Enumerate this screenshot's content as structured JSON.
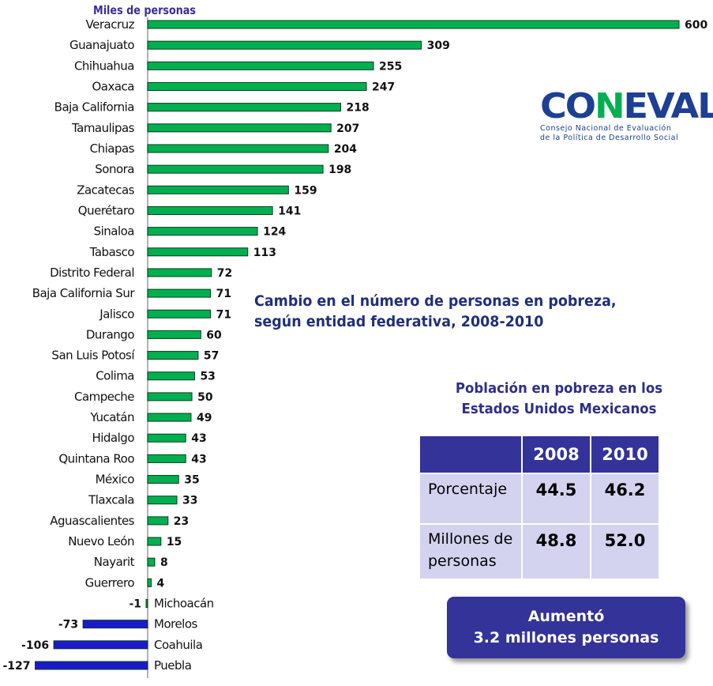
{
  "chart_data": {
    "type": "bar",
    "orientation": "horizontal",
    "unit_label": "Miles de personas",
    "title": "Cambio en el número de personas en pobreza, según entidad federativa, 2008-2010",
    "categories": [
      "Veracruz",
      "Guanajuato",
      "Chihuahua",
      "Oaxaca",
      "Baja California",
      "Tamaulipas",
      "Chiapas",
      "Sonora",
      "Zacatecas",
      "Querétaro",
      "Sinaloa",
      "Tabasco",
      "Distrito Federal",
      "Baja California Sur",
      "Jalisco",
      "Durango",
      "San Luis Potosí",
      "Colima",
      "Campeche",
      "Yucatán",
      "Hidalgo",
      "Quintana Roo",
      "México",
      "Tlaxcala",
      "Aguascalientes",
      "Nuevo León",
      "Nayarit",
      "Guerrero",
      "Michoacán",
      "Morelos",
      "Coahuila",
      "Puebla"
    ],
    "values": [
      600,
      309,
      255,
      247,
      218,
      207,
      204,
      198,
      159,
      141,
      124,
      113,
      72,
      71,
      71,
      60,
      57,
      53,
      50,
      49,
      43,
      43,
      35,
      33,
      23,
      15,
      8,
      4,
      -1,
      -73,
      -106,
      -127
    ],
    "colors": {
      "positive": "#00b050",
      "negative": "#1a1acc"
    },
    "grid": false,
    "data_labels": true
  },
  "summary": {
    "title_line1": "Cambio en el número de personas en pobreza,",
    "title_line2": "según entidad federativa, 2008-2010",
    "table_title_line1": "Población en pobreza en los",
    "table_title_line2": "Estados Unidos Mexicanos",
    "columns": [
      "",
      "2008",
      "2010"
    ],
    "rows": [
      {
        "label": "Porcentaje",
        "v2008": "44.5",
        "v2010": "46.2"
      },
      {
        "label": "Millones de personas",
        "v2008": "48.8",
        "v2010": "52.0"
      }
    ],
    "callout_line1": "Aumentó",
    "callout_line2": "3.2 millones personas"
  },
  "logo": {
    "wordmark": "CONEVAL",
    "tagline1": "Consejo Nacional de Evaluación",
    "tagline2": "de la Política de Desarrollo Social",
    "colors": {
      "blue": "#1d3f94",
      "green": "#00b050"
    }
  }
}
